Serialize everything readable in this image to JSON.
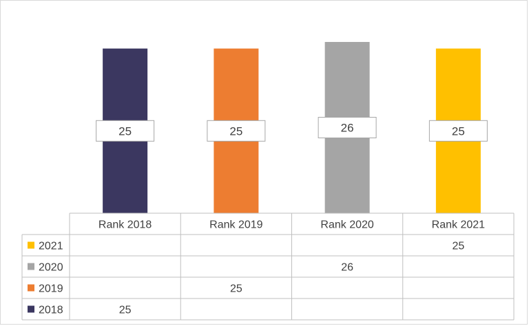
{
  "chart_data": {
    "type": "bar",
    "categories": [
      "Rank 2018",
      "Rank 2019",
      "Rank 2020",
      "Rank 2021"
    ],
    "values": [
      25,
      25,
      26,
      25
    ],
    "series": [
      {
        "name": "2018",
        "color": "#3b3760",
        "category_index": 0,
        "value": 25
      },
      {
        "name": "2019",
        "color": "#ed7d31",
        "category_index": 1,
        "value": 25
      },
      {
        "name": "2020",
        "color": "#a5a5a5",
        "category_index": 2,
        "value": 26
      },
      {
        "name": "2021",
        "color": "#ffc000",
        "category_index": 3,
        "value": 25
      }
    ],
    "table_row_order": [
      "2021",
      "2020",
      "2019",
      "2018"
    ],
    "title": "",
    "xlabel": "",
    "ylabel": "",
    "grid": false,
    "legend": "data-table"
  }
}
